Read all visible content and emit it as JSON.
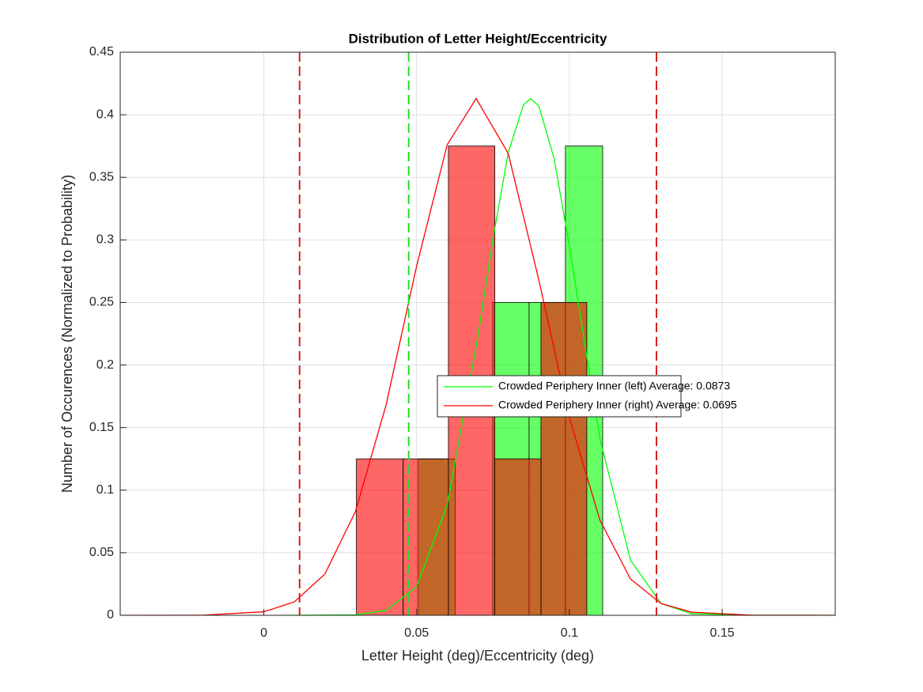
{
  "chart_data": {
    "type": "histogram",
    "title": "Distribution of Letter Height/Eccentricity",
    "x_label": "Letter Height (deg)/Eccentricity (deg)",
    "y_label": "Number of Occurences (Normalized to Probability)",
    "xlim": [
      -0.047,
      0.187
    ],
    "ylim": [
      0,
      0.45
    ],
    "xticks": [
      0,
      0.05,
      0.1,
      0.15
    ],
    "yticks": [
      0,
      0.05,
      0.1,
      0.15,
      0.2,
      0.25,
      0.3,
      0.35,
      0.4,
      0.45
    ],
    "grid": true,
    "legend_location": "east",
    "series": [
      {
        "name": "Crowded Periphery Inner (left) Average: 0.0873",
        "color": "#00ff00",
        "bins": [
          0.0505,
          0.0627,
          0.0749,
          0.0868,
          0.0987,
          0.1109
        ],
        "values": [
          0.125,
          0,
          0.25,
          0.25,
          0.375
        ],
        "curve_x": [
          0.007,
          0.03,
          0.04,
          0.05,
          0.06,
          0.07,
          0.075,
          0.08,
          0.085,
          0.0873,
          0.09,
          0.095,
          0.1,
          0.11,
          0.12,
          0.13,
          0.14,
          0.16,
          0.187
        ],
        "curve_values": [
          0,
          0.0004,
          0.0039,
          0.023,
          0.088,
          0.222,
          0.301,
          0.37,
          0.408,
          0.413,
          0.407,
          0.365,
          0.295,
          0.141,
          0.044,
          0.0094,
          0.0013,
          0,
          0
        ],
        "vlines": [
          0.0474
        ]
      },
      {
        "name": "Crowded Periphery Inner (right) Average: 0.0695",
        "color": "#ff0000",
        "bins": [
          0.0303,
          0.0456,
          0.0604,
          0.0756,
          0.0907,
          0.1057
        ],
        "values": [
          0.125,
          0.125,
          0.375,
          0.125,
          0.25
        ],
        "curve_x": [
          -0.047,
          -0.02,
          0,
          0.01,
          0.02,
          0.03,
          0.04,
          0.05,
          0.06,
          0.0695,
          0.08,
          0.09,
          0.1,
          0.11,
          0.12,
          0.13,
          0.14,
          0.16,
          0.187
        ],
        "curve_values": [
          0,
          0.0001,
          0.0028,
          0.0107,
          0.033,
          0.083,
          0.168,
          0.279,
          0.376,
          0.413,
          0.369,
          0.268,
          0.158,
          0.076,
          0.029,
          0.0094,
          0.0025,
          0.0001,
          0
        ],
        "vlines": [
          0.0117,
          0.1285
        ]
      }
    ]
  }
}
